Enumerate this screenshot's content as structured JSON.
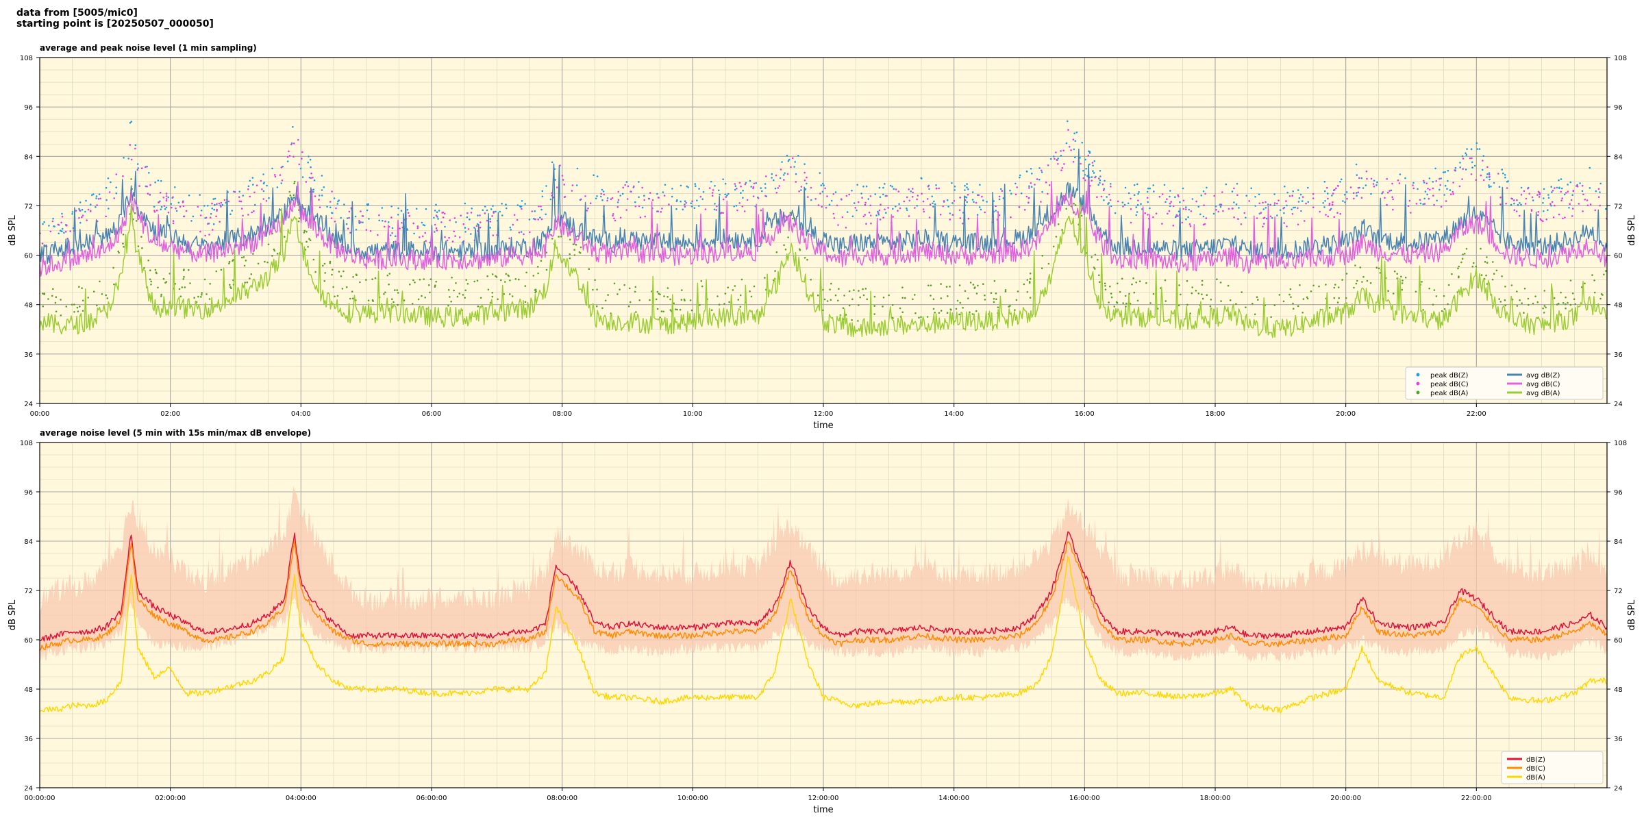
{
  "header": {
    "line1": "data from [5005/mic0]",
    "line2": "starting point is [20250507_000050]"
  },
  "colors": {
    "plot_bg": "#fff8dc",
    "z": "#4682b4",
    "c": "#e060e0",
    "a": "#9acd32",
    "z_peak": "#1f9fe0",
    "c_peak": "#e040e0",
    "a_peak": "#5aa02a",
    "z_avg5": "#dc143c",
    "c_avg5": "#ff8c00",
    "a_avg5": "#ffd700",
    "envelope": "#f8c8b0"
  },
  "chart_data": [
    {
      "type": "line",
      "title": "average and peak noise level (1 min sampling)",
      "xlabel": "time",
      "ylabel": "dB SPL",
      "xlim": [
        0,
        24
      ],
      "ylim": [
        24,
        108
      ],
      "yticks": [
        "24",
        "36",
        "48",
        "60",
        "72",
        "84",
        "96",
        "108"
      ],
      "xtick_labels": [
        "00:00",
        "02:00",
        "04:00",
        "06:00",
        "08:00",
        "10:00",
        "12:00",
        "14:00",
        "16:00",
        "18:00",
        "20:00",
        "22:00"
      ],
      "grid": true,
      "legend_position": "bottom-right",
      "legend": [
        {
          "label": "peak dB(Z)",
          "kind": "dot",
          "color_key": "z_peak"
        },
        {
          "label": "peak dB(C)",
          "kind": "dot",
          "color_key": "c_peak"
        },
        {
          "label": "peak dB(A)",
          "kind": "dot",
          "color_key": "a_peak"
        },
        {
          "label": "avg dB(Z)",
          "kind": "line",
          "color_key": "z"
        },
        {
          "label": "avg dB(C)",
          "kind": "line",
          "color_key": "c"
        },
        {
          "label": "avg dB(A)",
          "kind": "line",
          "color_key": "a"
        }
      ],
      "x_hours": [
        0,
        0.25,
        0.5,
        0.75,
        1,
        1.25,
        1.4,
        1.5,
        1.75,
        2,
        2.25,
        2.5,
        2.75,
        3,
        3.25,
        3.5,
        3.75,
        3.9,
        4,
        4.25,
        4.5,
        4.75,
        5,
        5.5,
        6,
        6.5,
        7,
        7.25,
        7.5,
        7.75,
        7.9,
        8.25,
        8.5,
        8.75,
        9,
        9.5,
        10,
        10.5,
        11,
        11.25,
        11.5,
        11.75,
        12,
        12.25,
        12.5,
        13,
        13.5,
        14,
        14.5,
        15,
        15.25,
        15.5,
        15.75,
        16,
        16.25,
        16.5,
        17,
        17.5,
        18,
        18.25,
        18.5,
        19,
        19.5,
        20,
        20.25,
        20.5,
        21,
        21.5,
        21.75,
        22,
        22.5,
        23,
        23.5,
        23.75,
        24
      ],
      "series": [
        {
          "name": "avg dB(Z)",
          "color_key": "z",
          "values": [
            60,
            61,
            62,
            63,
            64,
            68,
            76,
            72,
            66,
            65,
            63,
            62,
            63,
            64,
            65,
            67,
            70,
            76,
            72,
            68,
            64,
            62,
            61,
            61,
            61,
            61,
            61,
            62,
            62,
            64,
            70,
            66,
            64,
            63,
            64,
            63,
            63,
            64,
            64,
            68,
            70,
            66,
            64,
            62,
            63,
            63,
            64,
            63,
            63,
            64,
            66,
            70,
            76,
            72,
            66,
            62,
            62,
            61,
            62,
            63,
            61,
            61,
            62,
            63,
            66,
            64,
            63,
            64,
            68,
            70,
            63,
            62,
            64,
            66,
            62
          ]
        },
        {
          "name": "avg dB(C)",
          "color_key": "c",
          "values": [
            57,
            58,
            59,
            60,
            61,
            66,
            74,
            70,
            63,
            62,
            61,
            60,
            61,
            62,
            63,
            65,
            68,
            74,
            70,
            66,
            62,
            60,
            59,
            59,
            59,
            59,
            59,
            60,
            60,
            62,
            68,
            64,
            61,
            60,
            61,
            60,
            60,
            61,
            61,
            66,
            68,
            63,
            61,
            59,
            60,
            60,
            61,
            60,
            60,
            61,
            63,
            68,
            74,
            70,
            63,
            59,
            59,
            58,
            59,
            60,
            58,
            58,
            59,
            60,
            63,
            61,
            60,
            61,
            66,
            68,
            60,
            59,
            61,
            63,
            59
          ]
        },
        {
          "name": "avg dB(A)",
          "color_key": "a",
          "values": [
            44,
            43,
            43,
            44,
            46,
            54,
            70,
            60,
            47,
            48,
            47,
            47,
            48,
            50,
            52,
            55,
            60,
            72,
            62,
            52,
            48,
            46,
            46,
            46,
            45,
            45,
            46,
            47,
            47,
            52,
            62,
            54,
            45,
            44,
            44,
            43,
            44,
            45,
            45,
            52,
            62,
            52,
            44,
            43,
            42,
            43,
            43,
            44,
            44,
            45,
            47,
            55,
            70,
            60,
            48,
            45,
            45,
            44,
            45,
            46,
            43,
            42,
            44,
            46,
            50,
            48,
            45,
            44,
            50,
            55,
            44,
            43,
            45,
            48,
            47
          ]
        },
        {
          "name": "peak dB(Z)",
          "color_key": "z_peak",
          "values": [
            66,
            67,
            68,
            69,
            72,
            78,
            88,
            82,
            74,
            72,
            70,
            69,
            70,
            72,
            74,
            76,
            80,
            88,
            82,
            76,
            72,
            68,
            67,
            67,
            67,
            67,
            67,
            68,
            68,
            72,
            80,
            76,
            74,
            72,
            74,
            72,
            72,
            74,
            74,
            78,
            82,
            76,
            74,
            70,
            72,
            72,
            74,
            72,
            72,
            74,
            76,
            80,
            88,
            82,
            76,
            72,
            72,
            71,
            72,
            73,
            71,
            71,
            72,
            74,
            78,
            76,
            74,
            76,
            80,
            82,
            74,
            72,
            74,
            76,
            72
          ]
        },
        {
          "name": "peak dB(C)",
          "color_key": "c_peak",
          "values": [
            64,
            65,
            66,
            67,
            70,
            76,
            86,
            80,
            72,
            70,
            68,
            67,
            68,
            70,
            72,
            74,
            78,
            86,
            80,
            74,
            70,
            66,
            65,
            65,
            65,
            65,
            65,
            66,
            66,
            70,
            78,
            74,
            72,
            70,
            72,
            70,
            70,
            72,
            72,
            76,
            80,
            74,
            72,
            68,
            70,
            70,
            72,
            70,
            70,
            72,
            74,
            78,
            86,
            80,
            74,
            70,
            70,
            69,
            70,
            71,
            69,
            69,
            70,
            72,
            76,
            74,
            72,
            74,
            78,
            80,
            72,
            70,
            72,
            74,
            70
          ]
        },
        {
          "name": "peak dB(A)",
          "color_key": "a_peak",
          "values": [
            48,
            47,
            47,
            48,
            50,
            58,
            74,
            64,
            51,
            52,
            51,
            51,
            52,
            54,
            56,
            59,
            64,
            76,
            66,
            56,
            52,
            50,
            50,
            50,
            49,
            49,
            50,
            51,
            51,
            56,
            66,
            58,
            49,
            48,
            48,
            47,
            48,
            49,
            49,
            56,
            66,
            56,
            48,
            47,
            46,
            47,
            47,
            48,
            48,
            49,
            51,
            59,
            74,
            64,
            52,
            49,
            49,
            48,
            49,
            50,
            47,
            46,
            48,
            50,
            54,
            52,
            49,
            48,
            54,
            59,
            48,
            47,
            49,
            52,
            51
          ]
        }
      ]
    },
    {
      "type": "line",
      "title": "average noise level (5 min with 15s min/max dB envelope)",
      "xlabel": "time",
      "ylabel": "dB SPL",
      "xlim": [
        0,
        24
      ],
      "ylim": [
        24,
        108
      ],
      "yticks": [
        "24",
        "36",
        "48",
        "60",
        "72",
        "84",
        "96",
        "108"
      ],
      "xtick_labels": [
        "00:00:00",
        "02:00:00",
        "04:00:00",
        "06:00:00",
        "08:00:00",
        "10:00:00",
        "12:00:00",
        "14:00:00",
        "16:00:00",
        "18:00:00",
        "20:00:00",
        "22:00:00"
      ],
      "grid": true,
      "legend_position": "bottom-right",
      "legend": [
        {
          "label": "dB(Z)",
          "kind": "line",
          "color_key": "z_avg5"
        },
        {
          "label": "dB(C)",
          "kind": "line",
          "color_key": "c_avg5"
        },
        {
          "label": "dB(A)",
          "kind": "line",
          "color_key": "a_avg5"
        }
      ],
      "x_hours": [
        0,
        0.25,
        0.5,
        0.75,
        1,
        1.25,
        1.4,
        1.5,
        1.75,
        2,
        2.25,
        2.5,
        2.75,
        3,
        3.25,
        3.5,
        3.75,
        3.9,
        4,
        4.25,
        4.5,
        4.75,
        5,
        5.5,
        6,
        6.5,
        7,
        7.25,
        7.5,
        7.75,
        7.9,
        8.25,
        8.5,
        8.75,
        9,
        9.5,
        10,
        10.5,
        11,
        11.25,
        11.5,
        11.75,
        12,
        12.25,
        12.5,
        13,
        13.5,
        14,
        14.5,
        15,
        15.25,
        15.5,
        15.75,
        16,
        16.25,
        16.5,
        17,
        17.5,
        18,
        18.25,
        18.5,
        19,
        19.5,
        20,
        20.25,
        20.5,
        21,
        21.5,
        21.75,
        22,
        22.5,
        23,
        23.5,
        23.75,
        24
      ],
      "envelope": {
        "upper": [
          70,
          72,
          73,
          74,
          78,
          84,
          94,
          88,
          82,
          80,
          76,
          74,
          76,
          78,
          80,
          82,
          86,
          96,
          92,
          84,
          78,
          72,
          70,
          70,
          70,
          70,
          70,
          72,
          72,
          76,
          86,
          82,
          78,
          76,
          78,
          76,
          76,
          78,
          78,
          84,
          88,
          82,
          78,
          74,
          76,
          76,
          78,
          76,
          76,
          78,
          80,
          84,
          92,
          88,
          82,
          76,
          76,
          74,
          76,
          78,
          74,
          74,
          76,
          78,
          82,
          80,
          78,
          80,
          84,
          86,
          78,
          76,
          78,
          82,
          76
        ],
        "lower": [
          56,
          57,
          58,
          58,
          59,
          62,
          70,
          65,
          59,
          59,
          58,
          58,
          59,
          60,
          61,
          63,
          65,
          70,
          66,
          61,
          59,
          58,
          58,
          58,
          58,
          58,
          58,
          58,
          58,
          60,
          64,
          60,
          58,
          57,
          58,
          57,
          58,
          58,
          58,
          61,
          64,
          59,
          58,
          57,
          57,
          57,
          58,
          57,
          57,
          58,
          60,
          64,
          70,
          66,
          60,
          57,
          57,
          56,
          57,
          58,
          56,
          56,
          57,
          58,
          60,
          58,
          57,
          58,
          61,
          63,
          57,
          56,
          58,
          60,
          57
        ]
      },
      "series": [
        {
          "name": "dB(Z)",
          "color_key": "z_avg5",
          "values": [
            60,
            61,
            62,
            62,
            63,
            67,
            86,
            72,
            68,
            66,
            64,
            62,
            62,
            63,
            64,
            66,
            70,
            86,
            74,
            68,
            64,
            61,
            61,
            61,
            61,
            61,
            61,
            62,
            62,
            64,
            78,
            72,
            64,
            63,
            64,
            63,
            63,
            64,
            64,
            68,
            79,
            68,
            63,
            61,
            62,
            62,
            63,
            62,
            62,
            63,
            66,
            72,
            86,
            76,
            66,
            62,
            62,
            61,
            62,
            63,
            61,
            61,
            62,
            63,
            70,
            64,
            63,
            64,
            72,
            70,
            62,
            62,
            64,
            66,
            63
          ]
        },
        {
          "name": "dB(C)",
          "color_key": "c_avg5",
          "values": [
            58,
            59,
            60,
            60,
            61,
            65,
            84,
            70,
            66,
            64,
            62,
            60,
            60,
            61,
            62,
            64,
            68,
            84,
            72,
            66,
            62,
            60,
            59,
            59,
            59,
            59,
            59,
            60,
            60,
            62,
            76,
            70,
            62,
            61,
            62,
            61,
            61,
            62,
            62,
            66,
            77,
            66,
            61,
            59,
            60,
            60,
            61,
            60,
            60,
            61,
            64,
            70,
            84,
            74,
            64,
            60,
            60,
            59,
            60,
            61,
            59,
            59,
            60,
            61,
            68,
            62,
            61,
            62,
            70,
            68,
            60,
            60,
            62,
            64,
            61
          ]
        },
        {
          "name": "dB(A)",
          "color_key": "a_avg5",
          "values": [
            43,
            43,
            44,
            44,
            45,
            50,
            76,
            58,
            51,
            53,
            47,
            47,
            48,
            49,
            50,
            52,
            56,
            76,
            62,
            54,
            50,
            48,
            48,
            48,
            47,
            47,
            48,
            48,
            48,
            52,
            68,
            58,
            47,
            46,
            46,
            45,
            46,
            46,
            46,
            52,
            70,
            55,
            46,
            45,
            44,
            45,
            45,
            46,
            46,
            47,
            49,
            56,
            80,
            60,
            50,
            47,
            47,
            46,
            47,
            48,
            44,
            43,
            46,
            48,
            58,
            50,
            47,
            46,
            56,
            58,
            46,
            45,
            47,
            50,
            50
          ]
        }
      ]
    }
  ]
}
